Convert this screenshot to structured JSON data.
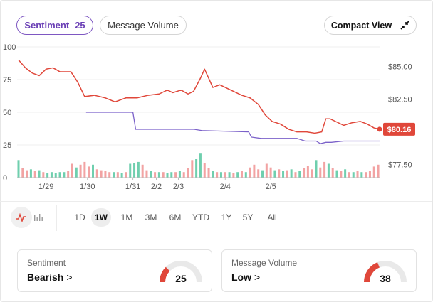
{
  "tabs": {
    "sentiment": {
      "label": "Sentiment",
      "count": "25"
    },
    "message_volume": {
      "label": "Message Volume"
    },
    "compact_view": {
      "label": "Compact View",
      "icon": "collapse-arrows-icon"
    }
  },
  "chart_data": {
    "type": "line",
    "left_axis": {
      "ticks": [
        "100",
        "75",
        "50",
        "25",
        "0"
      ],
      "range": [
        0,
        100
      ]
    },
    "right_axis": {
      "ticks": [
        "$85.00",
        "$82.50",
        "$77.50"
      ],
      "range": [
        76.5,
        86.5
      ]
    },
    "x_labels": [
      "1/29",
      "1/30",
      "1/31",
      "2/2",
      "2/3",
      "2/4",
      "2/5"
    ],
    "price_label": "$80.16",
    "colors": {
      "price": "#e0473a",
      "sentiment": "#7b61c9",
      "bar_up": "#6fcfae",
      "bar_down": "#f2a3a3"
    },
    "series": [
      {
        "axis": "right",
        "points": [
          [
            0.0,
            85.5
          ],
          [
            0.5,
            84.9
          ],
          [
            1.0,
            84.5
          ],
          [
            1.5,
            84.3
          ],
          [
            2.0,
            84.8
          ],
          [
            2.5,
            84.9
          ],
          [
            3.0,
            84.6
          ],
          [
            3.8,
            84.6
          ],
          [
            4.3,
            83.8
          ],
          [
            4.8,
            82.7
          ],
          [
            5.5,
            82.8
          ],
          [
            6.3,
            82.6
          ],
          [
            7.0,
            82.3
          ],
          [
            7.8,
            82.6
          ],
          [
            8.6,
            82.6
          ],
          [
            9.4,
            82.8
          ],
          [
            10.2,
            82.9
          ],
          [
            10.8,
            83.2
          ],
          [
            11.2,
            83.0
          ],
          [
            11.8,
            83.2
          ],
          [
            12.3,
            82.9
          ],
          [
            12.7,
            83.1
          ],
          [
            13.2,
            84.1
          ],
          [
            13.5,
            84.8
          ],
          [
            13.8,
            84.1
          ],
          [
            14.1,
            83.4
          ],
          [
            14.6,
            83.6
          ],
          [
            15.4,
            83.2
          ],
          [
            16.2,
            82.8
          ],
          [
            16.8,
            82.6
          ],
          [
            17.4,
            82.1
          ],
          [
            17.9,
            81.3
          ],
          [
            18.4,
            80.8
          ],
          [
            19.0,
            80.6
          ],
          [
            19.6,
            80.2
          ],
          [
            20.2,
            80.0
          ],
          [
            20.9,
            80.0
          ],
          [
            21.5,
            79.9
          ],
          [
            22.0,
            80.0
          ],
          [
            22.3,
            81.0
          ],
          [
            22.6,
            81.0
          ],
          [
            23.0,
            80.8
          ],
          [
            23.6,
            80.5
          ],
          [
            24.2,
            80.7
          ],
          [
            24.8,
            80.8
          ],
          [
            25.3,
            80.6
          ],
          [
            25.8,
            80.3
          ],
          [
            26.2,
            80.2
          ]
        ]
      },
      {
        "axis": "left",
        "points": [
          [
            4.9,
            50
          ],
          [
            8.3,
            50
          ],
          [
            8.5,
            37
          ],
          [
            12.7,
            37
          ],
          [
            13.3,
            36
          ],
          [
            16.7,
            35
          ],
          [
            16.9,
            31
          ],
          [
            17.6,
            30
          ],
          [
            19.0,
            30
          ],
          [
            20.2,
            30
          ],
          [
            20.8,
            28
          ],
          [
            21.6,
            28
          ],
          [
            21.9,
            26
          ],
          [
            22.3,
            27
          ],
          [
            22.7,
            27
          ],
          [
            23.6,
            28
          ],
          [
            26.2,
            28
          ]
        ]
      }
    ],
    "volume_bars": [
      {
        "x": 0.0,
        "v": 0.95,
        "up": true
      },
      {
        "x": 0.3,
        "v": 0.5,
        "up": false
      },
      {
        "x": 0.6,
        "v": 0.4,
        "up": false
      },
      {
        "x": 0.9,
        "v": 0.45,
        "up": true
      },
      {
        "x": 1.2,
        "v": 0.35,
        "up": false
      },
      {
        "x": 1.5,
        "v": 0.4,
        "up": true
      },
      {
        "x": 1.8,
        "v": 0.3,
        "up": false
      },
      {
        "x": 2.1,
        "v": 0.25,
        "up": true
      },
      {
        "x": 2.4,
        "v": 0.3,
        "up": true
      },
      {
        "x": 2.7,
        "v": 0.25,
        "up": true
      },
      {
        "x": 3.0,
        "v": 0.3,
        "up": true
      },
      {
        "x": 3.3,
        "v": 0.3,
        "up": true
      },
      {
        "x": 3.6,
        "v": 0.35,
        "up": false
      },
      {
        "x": 3.9,
        "v": 0.75,
        "up": false
      },
      {
        "x": 4.2,
        "v": 0.55,
        "up": true
      },
      {
        "x": 4.5,
        "v": 0.7,
        "up": false
      },
      {
        "x": 4.8,
        "v": 0.85,
        "up": false
      },
      {
        "x": 5.1,
        "v": 0.6,
        "up": false
      },
      {
        "x": 5.4,
        "v": 0.7,
        "up": true
      },
      {
        "x": 5.7,
        "v": 0.45,
        "up": false
      },
      {
        "x": 6.0,
        "v": 0.4,
        "up": false
      },
      {
        "x": 6.3,
        "v": 0.35,
        "up": false
      },
      {
        "x": 6.6,
        "v": 0.3,
        "up": false
      },
      {
        "x": 6.9,
        "v": 0.3,
        "up": true
      },
      {
        "x": 7.2,
        "v": 0.3,
        "up": false
      },
      {
        "x": 7.5,
        "v": 0.25,
        "up": true
      },
      {
        "x": 7.8,
        "v": 0.3,
        "up": false
      },
      {
        "x": 8.1,
        "v": 0.75,
        "up": true
      },
      {
        "x": 8.4,
        "v": 0.8,
        "up": true
      },
      {
        "x": 8.7,
        "v": 0.85,
        "up": true
      },
      {
        "x": 9.0,
        "v": 0.7,
        "up": false
      },
      {
        "x": 9.3,
        "v": 0.4,
        "up": false
      },
      {
        "x": 9.6,
        "v": 0.35,
        "up": true
      },
      {
        "x": 9.9,
        "v": 0.3,
        "up": false
      },
      {
        "x": 10.2,
        "v": 0.3,
        "up": true
      },
      {
        "x": 10.5,
        "v": 0.3,
        "up": false
      },
      {
        "x": 10.8,
        "v": 0.25,
        "up": true
      },
      {
        "x": 11.1,
        "v": 0.3,
        "up": true
      },
      {
        "x": 11.4,
        "v": 0.3,
        "up": false
      },
      {
        "x": 11.7,
        "v": 0.35,
        "up": true
      },
      {
        "x": 12.0,
        "v": 0.3,
        "up": false
      },
      {
        "x": 12.3,
        "v": 0.5,
        "up": false
      },
      {
        "x": 12.6,
        "v": 0.95,
        "up": false
      },
      {
        "x": 12.9,
        "v": 1.0,
        "up": true
      },
      {
        "x": 13.2,
        "v": 1.3,
        "up": true
      },
      {
        "x": 13.5,
        "v": 0.8,
        "up": false
      },
      {
        "x": 13.8,
        "v": 0.5,
        "up": false
      },
      {
        "x": 14.1,
        "v": 0.35,
        "up": true
      },
      {
        "x": 14.4,
        "v": 0.3,
        "up": false
      },
      {
        "x": 14.7,
        "v": 0.3,
        "up": true
      },
      {
        "x": 15.0,
        "v": 0.3,
        "up": false
      },
      {
        "x": 15.3,
        "v": 0.3,
        "up": true
      },
      {
        "x": 15.6,
        "v": 0.25,
        "up": false
      },
      {
        "x": 15.9,
        "v": 0.3,
        "up": true
      },
      {
        "x": 16.2,
        "v": 0.35,
        "up": false
      },
      {
        "x": 16.5,
        "v": 0.3,
        "up": true
      },
      {
        "x": 16.8,
        "v": 0.55,
        "up": false
      },
      {
        "x": 17.1,
        "v": 0.7,
        "up": false
      },
      {
        "x": 17.4,
        "v": 0.45,
        "up": false
      },
      {
        "x": 17.7,
        "v": 0.4,
        "up": true
      },
      {
        "x": 18.0,
        "v": 0.75,
        "up": false
      },
      {
        "x": 18.3,
        "v": 0.55,
        "up": false
      },
      {
        "x": 18.6,
        "v": 0.4,
        "up": true
      },
      {
        "x": 18.9,
        "v": 0.45,
        "up": false
      },
      {
        "x": 19.2,
        "v": 0.35,
        "up": true
      },
      {
        "x": 19.5,
        "v": 0.4,
        "up": false
      },
      {
        "x": 19.8,
        "v": 0.45,
        "up": true
      },
      {
        "x": 20.1,
        "v": 0.3,
        "up": false
      },
      {
        "x": 20.4,
        "v": 0.35,
        "up": true
      },
      {
        "x": 20.7,
        "v": 0.5,
        "up": false
      },
      {
        "x": 21.0,
        "v": 0.65,
        "up": false
      },
      {
        "x": 21.3,
        "v": 0.45,
        "up": false
      },
      {
        "x": 21.6,
        "v": 0.95,
        "up": true
      },
      {
        "x": 21.9,
        "v": 0.55,
        "up": false
      },
      {
        "x": 22.2,
        "v": 0.85,
        "up": false
      },
      {
        "x": 22.5,
        "v": 0.75,
        "up": true
      },
      {
        "x": 22.8,
        "v": 0.5,
        "up": false
      },
      {
        "x": 23.1,
        "v": 0.4,
        "up": true
      },
      {
        "x": 23.4,
        "v": 0.35,
        "up": false
      },
      {
        "x": 23.7,
        "v": 0.45,
        "up": true
      },
      {
        "x": 24.0,
        "v": 0.3,
        "up": false
      },
      {
        "x": 24.3,
        "v": 0.3,
        "up": true
      },
      {
        "x": 24.6,
        "v": 0.35,
        "up": false
      },
      {
        "x": 24.9,
        "v": 0.3,
        "up": true
      },
      {
        "x": 25.2,
        "v": 0.3,
        "up": false
      },
      {
        "x": 25.5,
        "v": 0.35,
        "up": false
      },
      {
        "x": 25.8,
        "v": 0.6,
        "up": false
      },
      {
        "x": 26.1,
        "v": 0.7,
        "up": false
      }
    ]
  },
  "chart_types": [
    {
      "name": "line-chart-icon",
      "active": true
    },
    {
      "name": "bar-chart-icon",
      "active": false
    }
  ],
  "ranges": [
    "1D",
    "1W",
    "1M",
    "3M",
    "6M",
    "YTD",
    "1Y",
    "5Y",
    "All"
  ],
  "active_range": "1W",
  "cards": {
    "sentiment": {
      "title": "Sentiment",
      "value": "Bearish",
      "chevron": ">",
      "score": "25",
      "level": 0.25
    },
    "volume": {
      "title": "Message Volume",
      "value": "Low",
      "chevron": ">",
      "score": "38",
      "level": 0.38
    }
  }
}
